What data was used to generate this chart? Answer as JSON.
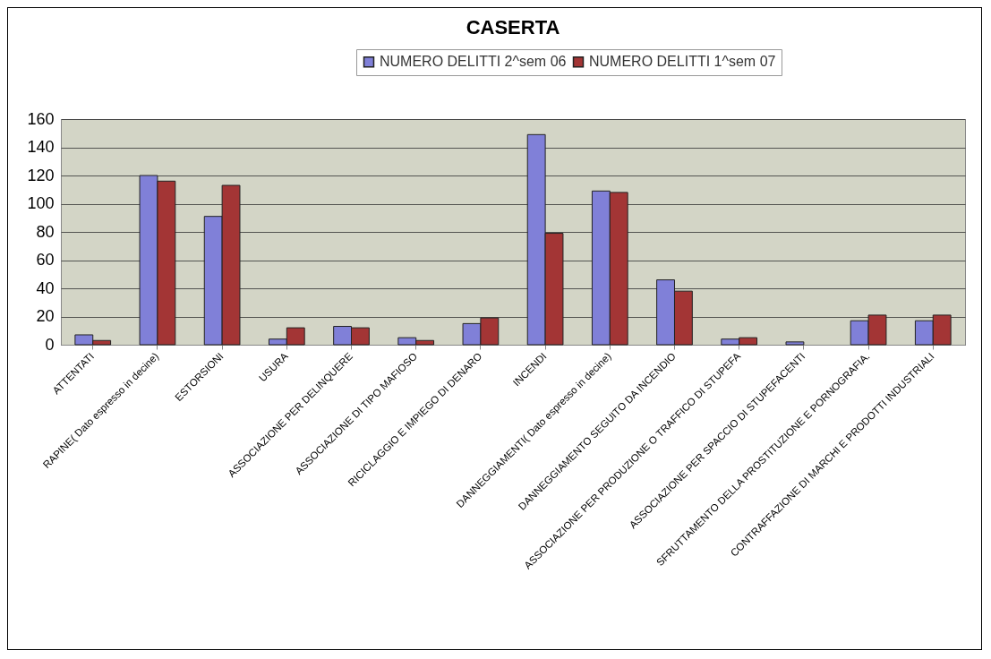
{
  "chart_data": {
    "type": "bar",
    "title": "CASERTA",
    "categories": [
      "ATTENTATI",
      "RAPINE( Dato espresso in decine)",
      "ESTORSIONI",
      "USURA",
      "ASSOCIAZIONE PER DELINQUERE",
      "ASSOCIAZIONE DI TIPO MAFIOSO",
      "RICICLAGGIO E IMPIEGO DI DENARO",
      "INCENDI",
      "DANNEGGIAMENTI( Dato espresso in decine)",
      "DANNEGGIAMENTO SEGUITO DA INCENDIO",
      "ASSOCIAZIONE PER PRODUZIONE O TRAFFICO DI STUPEFA",
      "ASSOCIAZIONE PER SPACCIO DI STUPEFACENTI",
      "SFRUTTAMENTO DELLA PROSTITUZIONE E PORNOGRAFIA.",
      "CONTRAFFAZIONE DI MARCHI E PRODOTTI INDUSTRIALI"
    ],
    "series": [
      {
        "name": "NUMERO DELITTI 2^sem 06",
        "color": "#8080d8",
        "values": [
          7,
          120,
          91,
          4,
          13,
          5,
          15,
          149,
          109,
          46,
          4,
          2,
          17,
          17
        ]
      },
      {
        "name": "NUMERO DELITTI 1^sem 07",
        "color": "#a33535",
        "values": [
          3,
          116,
          113,
          12,
          12,
          3,
          19,
          79,
          108,
          38,
          5,
          null,
          21,
          21
        ]
      }
    ],
    "ylim": [
      0,
      160
    ],
    "yticks": [
      0,
      20,
      40,
      60,
      80,
      100,
      120,
      140,
      160
    ],
    "grid": "y",
    "legend": "top"
  }
}
